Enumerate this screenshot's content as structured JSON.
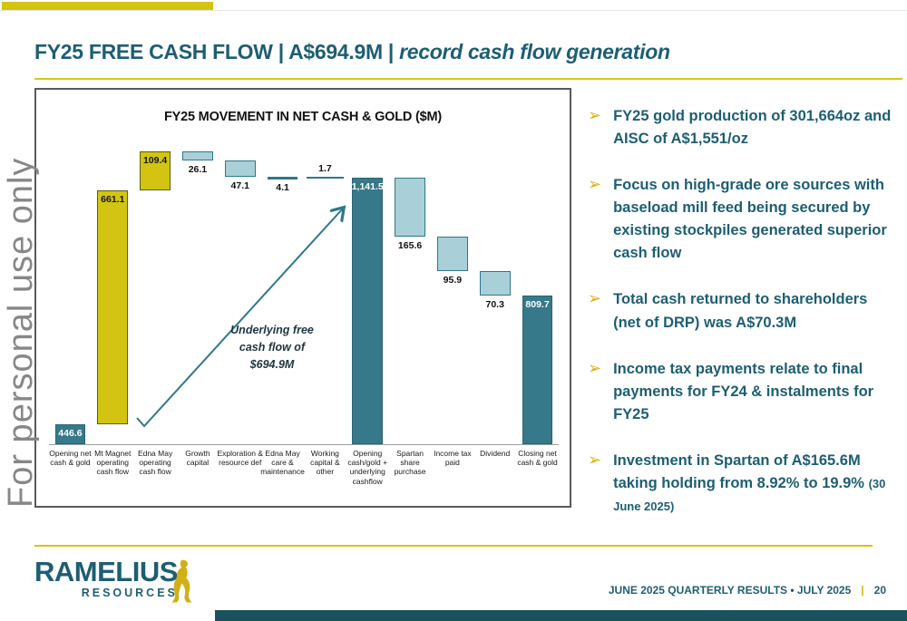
{
  "slide": {
    "title_main": "FY25 FREE CASH FLOW | A$694.9M |",
    "title_emphasis": "record cash flow generation",
    "watermark": "For personal use only"
  },
  "chart_data": {
    "type": "bar",
    "subtype": "waterfall",
    "title": "FY25 MOVEMENT IN NET CASH & GOLD ($M)",
    "unit": "$M",
    "ylim": [
      390,
      1250
    ],
    "grid": false,
    "legend": false,
    "annotation": "Underlying free\ncash flow of\n$694.9M",
    "colors": {
      "increase": "#d2c411",
      "decrease": "#a9cfd8",
      "total": "#35798a",
      "connector": "#2e7889"
    },
    "steps": [
      {
        "label": "Opening net cash & gold",
        "value": 446.6,
        "display": "446.6",
        "kind": "absolute",
        "style": "teal",
        "label_pos": "inside",
        "label_color": "#ffffff"
      },
      {
        "label": "Mt Magnet operating cash flow",
        "value": 661.1,
        "display": "661.1",
        "kind": "increase",
        "style": "gold",
        "label_pos": "inside",
        "label_color": "#141414"
      },
      {
        "label": "Edna May operating cash flow",
        "value": 109.4,
        "display": "109.4",
        "kind": "increase",
        "style": "gold",
        "label_pos": "inside",
        "label_color": "#141414"
      },
      {
        "label": "Growth capital",
        "value": 26.1,
        "display": "26.1",
        "kind": "decrease",
        "style": "blue",
        "label_pos": "below"
      },
      {
        "label": "Exploration & resource def",
        "value": 47.1,
        "display": "47.1",
        "kind": "decrease",
        "style": "blue",
        "label_pos": "below"
      },
      {
        "label": "Edna May care & maintenance",
        "value": 4.1,
        "display": "4.1",
        "kind": "decrease",
        "style": "strip",
        "label_pos": "below"
      },
      {
        "label": "Working capital & other",
        "value": 1.7,
        "display": "1.7",
        "kind": "increase",
        "style": "line",
        "label_pos": "above"
      },
      {
        "label": "Opening cash/gold + underlying cashflow",
        "value": 1141.5,
        "display": "1,141.5",
        "kind": "absolute",
        "style": "teal",
        "label_pos": "inside",
        "label_color": "#ffffff"
      },
      {
        "label": "Spartan share purchase",
        "value": 165.6,
        "display": "165.6",
        "kind": "decrease",
        "style": "blue",
        "label_pos": "below"
      },
      {
        "label": "Income tax paid",
        "value": 95.9,
        "display": "95.9",
        "kind": "decrease",
        "style": "blue",
        "label_pos": "below"
      },
      {
        "label": "Dividend",
        "value": 70.3,
        "display": "70.3",
        "kind": "decrease",
        "style": "blue",
        "label_pos": "below"
      },
      {
        "label": "Closing net cash & gold",
        "value": 809.7,
        "display": "809.7",
        "kind": "absolute",
        "style": "teal",
        "label_pos": "inside",
        "label_color": "#ffffff"
      }
    ]
  },
  "bullets": [
    {
      "text": "FY25 gold production of 301,664oz and AISC of A$1,551/oz",
      "suffix": ""
    },
    {
      "text": "Focus on high-grade ore sources with baseload mill feed being secured by existing stockpiles generated superior cash flow",
      "suffix": ""
    },
    {
      "text": "Total cash returned to shareholders (net of DRP) was A$70.3M",
      "suffix": ""
    },
    {
      "text": "Income tax payments relate to final payments for FY24 & instalments for FY25",
      "suffix": ""
    },
    {
      "text": "Investment in Spartan of A$165.6M taking holding from 8.92% to 19.9%",
      "suffix": "(30 June 2025)"
    }
  ],
  "footer": {
    "brand_name": "RAMELIUS",
    "brand_sub": "RESOURCES",
    "meta": "JUNE 2025 QUARTERLY RESULTS • JULY 2025",
    "separator": "|",
    "page_number": "20"
  },
  "colors": {
    "accent_gold": "#d2c411",
    "brand_teal": "#1d5e73",
    "bar_teal": "#35798a",
    "bar_lightblue": "#a9cfd8",
    "footer_bar": "#19525e",
    "watermark_gray": "#878787"
  }
}
